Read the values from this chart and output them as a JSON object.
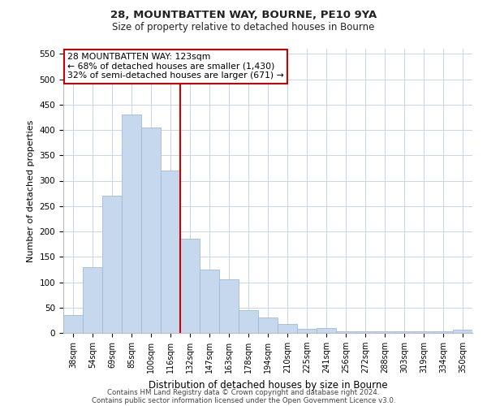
{
  "title1": "28, MOUNTBATTEN WAY, BOURNE, PE10 9YA",
  "title2": "Size of property relative to detached houses in Bourne",
  "xlabel": "Distribution of detached houses by size in Bourne",
  "ylabel": "Number of detached properties",
  "categories": [
    "38sqm",
    "54sqm",
    "69sqm",
    "85sqm",
    "100sqm",
    "116sqm",
    "132sqm",
    "147sqm",
    "163sqm",
    "178sqm",
    "194sqm",
    "210sqm",
    "225sqm",
    "241sqm",
    "256sqm",
    "272sqm",
    "288sqm",
    "303sqm",
    "319sqm",
    "334sqm",
    "350sqm"
  ],
  "values": [
    35,
    130,
    270,
    430,
    405,
    320,
    185,
    125,
    105,
    45,
    30,
    18,
    8,
    10,
    3,
    3,
    3,
    3,
    3,
    3,
    7
  ],
  "bar_color": "#c5d8ed",
  "bar_edgecolor": "#a0bcd8",
  "vline_x": 5.5,
  "vline_color": "#cc0000",
  "annotation_lines": [
    "28 MOUNTBATTEN WAY: 123sqm",
    "← 68% of detached houses are smaller (1,430)",
    "32% of semi-detached houses are larger (671) →"
  ],
  "annotation_box_edgecolor": "#cc0000",
  "annotation_box_facecolor": "#ffffff",
  "ylim": [
    0,
    560
  ],
  "yticks": [
    0,
    50,
    100,
    150,
    200,
    250,
    300,
    350,
    400,
    450,
    500,
    550
  ],
  "footer1": "Contains HM Land Registry data © Crown copyright and database right 2024.",
  "footer2": "Contains public sector information licensed under the Open Government Licence v3.0.",
  "bg_color": "#ffffff",
  "grid_color": "#c8d4e8"
}
